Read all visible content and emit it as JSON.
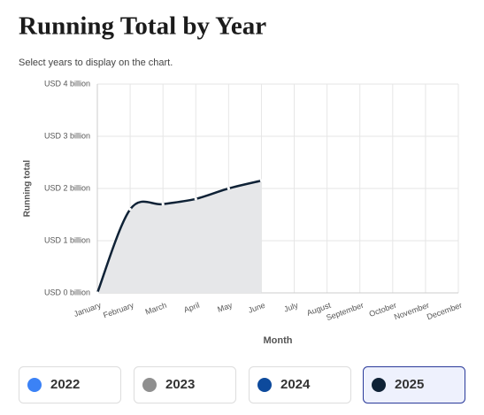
{
  "chart_data": {
    "type": "area",
    "title": "Running Total by Year",
    "subtitle": "Select years to display on the chart.",
    "x_label": "Month",
    "y_label": "Running total",
    "categories": [
      "January",
      "February",
      "March",
      "April",
      "May",
      "June",
      "July",
      "August",
      "September",
      "October",
      "November",
      "December"
    ],
    "series": [
      {
        "name": "2025",
        "color": "#0f2236",
        "values": [
          0,
          1.6,
          1.7,
          1.8,
          2.0,
          2.15,
          null,
          null,
          null,
          null,
          null,
          null
        ]
      }
    ],
    "ylim": [
      0,
      4
    ],
    "yticks": [
      {
        "value": 0,
        "label": "USD 0 billion"
      },
      {
        "value": 1,
        "label": "USD 1 billion"
      },
      {
        "value": 2,
        "label": "USD 2 billion"
      },
      {
        "value": 3,
        "label": "USD 3 billion"
      },
      {
        "value": 4,
        "label": "USD 4 billion"
      }
    ],
    "grid": true,
    "year_buttons": [
      {
        "label": "2022",
        "color": "#3b82f6"
      },
      {
        "label": "2023",
        "color": "#8f8f8f"
      },
      {
        "label": "2024",
        "color": "#0d4a9c"
      },
      {
        "label": "2025",
        "color": "#0f2236"
      }
    ],
    "selected": "2025"
  }
}
